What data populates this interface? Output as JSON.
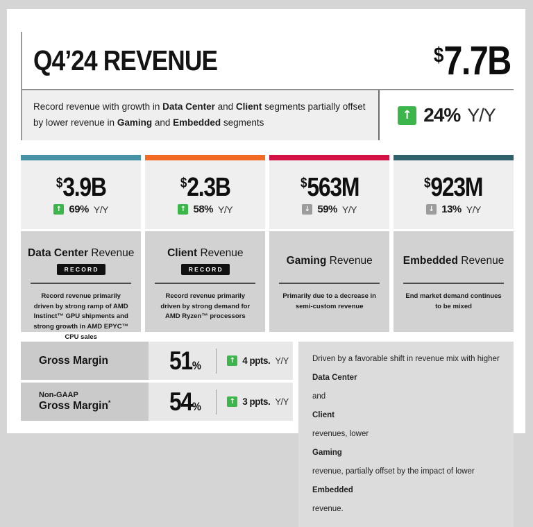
{
  "colors": {
    "up_green": "#3cb54a",
    "down_gray": "#9c9c9c"
  },
  "icons": {
    "up_arrow": "↑",
    "down_arrow": "↓"
  },
  "header": {
    "title": "Q4’24 REVENUE",
    "total_currency": "$",
    "total_value": "7.7B",
    "subtitle_segments": [
      {
        "t": "Record revenue with growth in ",
        "b": false
      },
      {
        "t": "Data Center",
        "b": true
      },
      {
        "t": " and ",
        "b": false
      },
      {
        "t": "Client",
        "b": true
      },
      {
        "t": " segments partially offset by lower revenue in ",
        "b": false
      },
      {
        "t": "Gaming",
        "b": true
      },
      {
        "t": " and ",
        "b": false
      },
      {
        "t": "Embedded",
        "b": true
      },
      {
        "t": " segments",
        "b": false
      }
    ],
    "yoy_value": "24%",
    "yoy_suffix": "Y/Y"
  },
  "cards": [
    {
      "accent_color": "#4591a5",
      "currency": "$",
      "value": "3.9B",
      "change_value": "69%",
      "change_suffix": "Y/Y",
      "change_direction": "up",
      "title_segments": [
        {
          "t": "Data Center",
          "b": true
        },
        {
          "t": " Revenue",
          "b": false
        }
      ],
      "record_label": "RECORD",
      "description": "Record revenue primarily driven by strong ramp of AMD Instinct™ GPU shipments and strong growth in AMD EPYC™ CPU sales"
    },
    {
      "accent_color": "#f26a21",
      "currency": "$",
      "value": "2.3B",
      "change_value": "58%",
      "change_suffix": "Y/Y",
      "change_direction": "up",
      "title_segments": [
        {
          "t": "Client",
          "b": true
        },
        {
          "t": " Revenue",
          "b": false
        }
      ],
      "record_label": "RECORD",
      "description": "Record revenue primarily driven by strong demand for AMD Ryzen™ processors"
    },
    {
      "accent_color": "#d21245",
      "currency": "$",
      "value": "563M",
      "change_value": "59%",
      "change_suffix": "Y/Y",
      "change_direction": "down",
      "title_segments": [
        {
          "t": "Gaming",
          "b": true
        },
        {
          "t": " Revenue",
          "b": false
        }
      ],
      "record_label": "",
      "description": "Primarily due to a decrease in semi-custom revenue"
    },
    {
      "accent_color": "#2e5f6b",
      "currency": "$",
      "value": "923M",
      "change_value": "13%",
      "change_suffix": "Y/Y",
      "change_direction": "down",
      "title_segments": [
        {
          "t": "Embedded",
          "b": true
        },
        {
          "t": " Revenue",
          "b": false
        }
      ],
      "record_label": "",
      "description": "End market demand continues to be mixed"
    }
  ],
  "margins": {
    "rows": [
      {
        "label_top": "",
        "label_main": "Gross Margin",
        "label_sup": "",
        "value": "51",
        "unit": "%",
        "change_value": "4 ppts.",
        "change_suffix": "Y/Y",
        "change_direction": "up"
      },
      {
        "label_top": "Non-GAAP",
        "label_main": "Gross Margin",
        "label_sup": "*",
        "value": "54",
        "unit": "%",
        "change_value": "3 ppts.",
        "change_suffix": "Y/Y",
        "change_direction": "up"
      }
    ],
    "driver_segments": [
      {
        "t": "Driven by a favorable shift in revenue mix with higher ",
        "b": false
      },
      {
        "t": "Data Center",
        "b": true
      },
      {
        "t": " and ",
        "b": false
      },
      {
        "t": "Client",
        "b": true
      },
      {
        "t": " revenues, lower ",
        "b": false
      },
      {
        "t": "Gaming",
        "b": true
      },
      {
        "t": " revenue, partially offset by the impact of lower ",
        "b": false
      },
      {
        "t": "Embedded",
        "b": true
      },
      {
        "t": " revenue.",
        "b": false
      }
    ]
  }
}
